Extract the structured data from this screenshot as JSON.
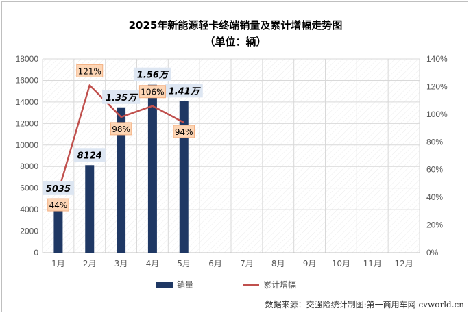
{
  "title": "2025年新能源轻卡终端销量及累计增幅走势图",
  "subtitle": "（单位：辆）",
  "legend": {
    "bar": "销量",
    "line": "累计增幅"
  },
  "source": "数据来源：交强险统计制图:第一商用车网 cvworld.cn",
  "colors": {
    "bar": "#1f3864",
    "line": "#c0504d",
    "label_box": "#fcd5b5",
    "label_box_border": "#f4b183",
    "bar_label_bg": "#dde6f2",
    "grid": "#d9d9d9"
  },
  "chart_data": {
    "type": "bar",
    "categories": [
      "1月",
      "2月",
      "3月",
      "4月",
      "5月",
      "6月",
      "7月",
      "8月",
      "9月",
      "10月",
      "11月",
      "12月"
    ],
    "series": [
      {
        "name": "销量",
        "axis": "left",
        "type": "bar",
        "values": [
          5035,
          8124,
          13500,
          15600,
          14100,
          null,
          null,
          null,
          null,
          null,
          null,
          null
        ],
        "labels": [
          "5035",
          "8124",
          "1.35万",
          "1.56万",
          "1.41万"
        ]
      },
      {
        "name": "累计增幅",
        "axis": "right",
        "type": "line",
        "values": [
          44,
          121,
          98,
          106,
          94,
          null,
          null,
          null,
          null,
          null,
          null,
          null
        ],
        "labels": [
          "44%",
          "121%",
          "98%",
          "106%",
          "94%"
        ]
      }
    ],
    "y_left": {
      "min": 0,
      "max": 18000,
      "step": 2000,
      "ticks": [
        "0",
        "2000",
        "4000",
        "6000",
        "8000",
        "10000",
        "12000",
        "14000",
        "16000",
        "18000"
      ]
    },
    "y_right": {
      "min": 0,
      "max": 140,
      "step": 20,
      "ticks": [
        "0%",
        "20%",
        "40%",
        "60%",
        "80%",
        "100%",
        "120%",
        "140%"
      ]
    },
    "grid": true,
    "legend_position": "bottom"
  }
}
